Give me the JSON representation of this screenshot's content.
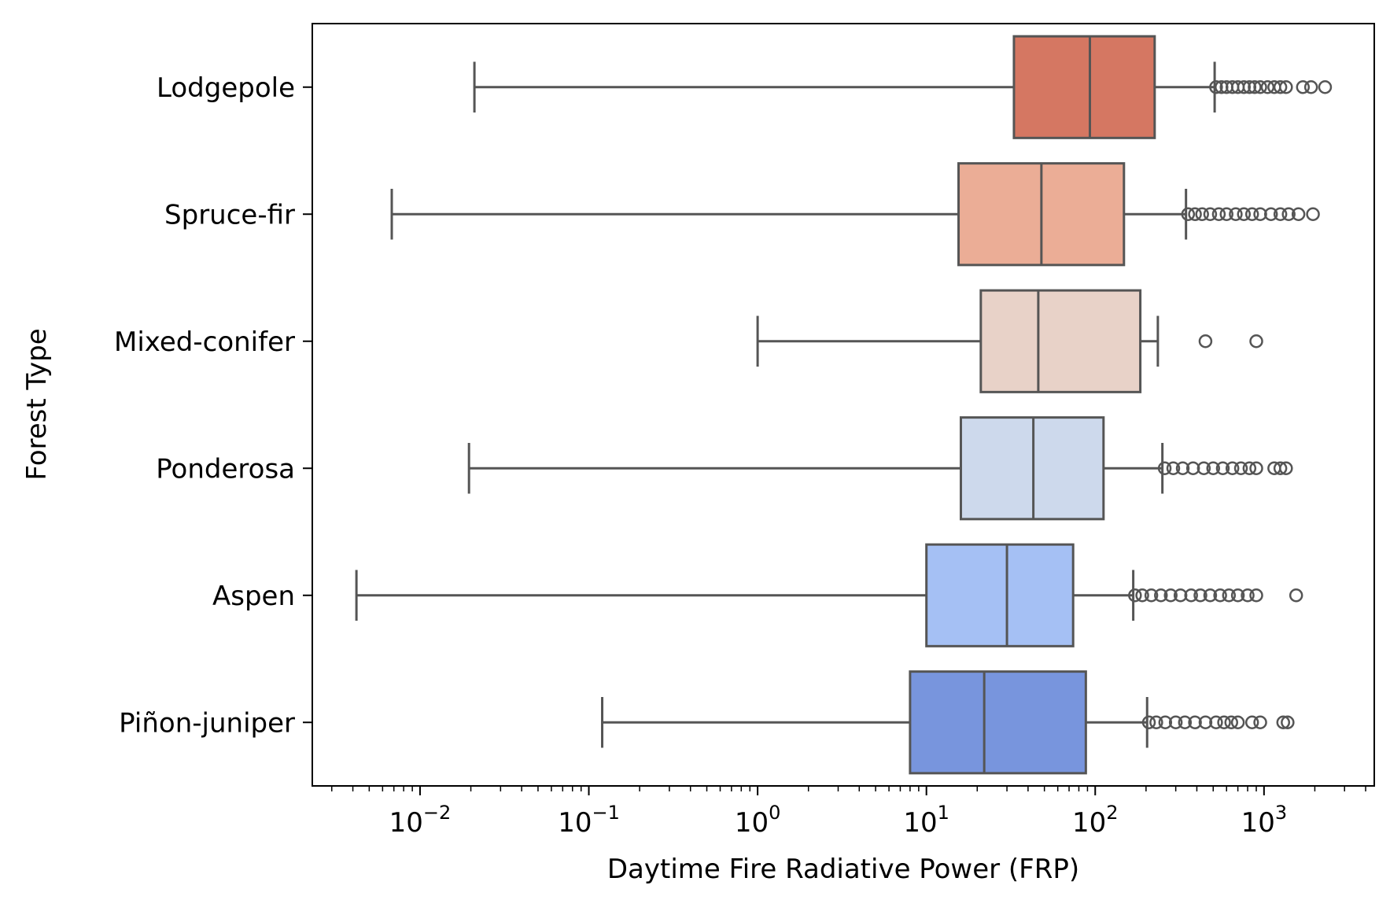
{
  "chart_data": {
    "type": "boxplot",
    "orientation": "horizontal",
    "xlabel": "Daytime Fire Radiative Power (FRP)",
    "ylabel": "Forest Type",
    "xscale": "log",
    "xlim": [
      0.0023,
      4500
    ],
    "x_ticks": [
      {
        "value": 0.01,
        "base": "10",
        "exp": "−2"
      },
      {
        "value": 0.1,
        "base": "10",
        "exp": "−1"
      },
      {
        "value": 1,
        "base": "10",
        "exp": "0"
      },
      {
        "value": 10,
        "base": "10",
        "exp": "1"
      },
      {
        "value": 100,
        "base": "10",
        "exp": "2"
      },
      {
        "value": 1000,
        "base": "10",
        "exp": "3"
      }
    ],
    "grid": false,
    "outline_color": "#555555",
    "series": [
      {
        "category": "Lodgepole",
        "color": "#d57762",
        "whisker_low": 0.021,
        "q1": 33,
        "median": 93,
        "q3": 225,
        "whisker_high": 510,
        "outliers": [
          520,
          560,
          600,
          650,
          700,
          760,
          820,
          880,
          950,
          1050,
          1150,
          1250,
          1350,
          1700,
          1900,
          2300
        ]
      },
      {
        "category": "Spruce-fir",
        "color": "#ebad96",
        "whisker_low": 0.0068,
        "q1": 15.5,
        "median": 48,
        "q3": 148,
        "whisker_high": 345,
        "outliers": [
          355,
          390,
          430,
          480,
          540,
          600,
          680,
          760,
          850,
          950,
          1100,
          1250,
          1400,
          1600,
          1950
        ]
      },
      {
        "category": "Mixed-conifer",
        "color": "#e8d2c8",
        "whisker_low": 1.0,
        "q1": 21,
        "median": 46,
        "q3": 185,
        "whisker_high": 235,
        "outliers": [
          450,
          900
        ]
      },
      {
        "category": "Ponderosa",
        "color": "#cdd9ec",
        "whisker_low": 0.0195,
        "q1": 16,
        "median": 43,
        "q3": 112,
        "whisker_high": 250,
        "outliers": [
          258,
          290,
          330,
          380,
          440,
          500,
          570,
          650,
          730,
          820,
          900,
          1150,
          1250,
          1350
        ]
      },
      {
        "category": "Aspen",
        "color": "#a5c0f4",
        "whisker_low": 0.0042,
        "q1": 10,
        "median": 30,
        "q3": 74,
        "whisker_high": 168,
        "outliers": [
          172,
          190,
          215,
          245,
          280,
          320,
          370,
          420,
          480,
          550,
          620,
          700,
          800,
          900,
          1550
        ]
      },
      {
        "category": "Piñon-juniper",
        "color": "#7895dd",
        "whisker_low": 0.12,
        "q1": 8,
        "median": 22,
        "q3": 88,
        "whisker_high": 203,
        "outliers": [
          208,
          230,
          260,
          300,
          340,
          390,
          450,
          520,
          580,
          640,
          700,
          850,
          950,
          1300,
          1380
        ]
      }
    ]
  }
}
